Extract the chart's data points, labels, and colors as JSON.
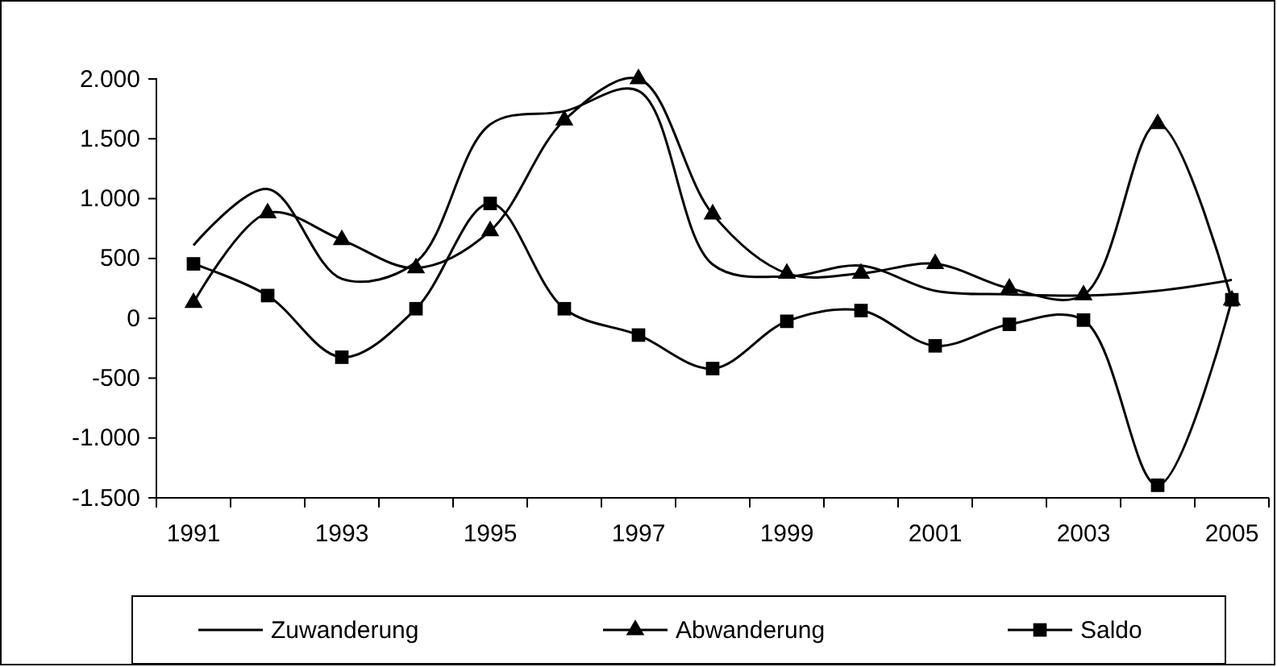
{
  "chart_data": {
    "type": "line",
    "categories": [
      "1991",
      null,
      "1993",
      null,
      "1995",
      null,
      "1997",
      null,
      "1999",
      null,
      "2001",
      null,
      "2003",
      null,
      "2005"
    ],
    "series": [
      {
        "name": "Zuwanderung",
        "color": "#000000",
        "marker": "none",
        "values": [
          610,
          1080,
          330,
          470,
          1620,
          1730,
          1900,
          450,
          350,
          440,
          230,
          200,
          190,
          230,
          320
        ]
      },
      {
        "name": "Abwanderung",
        "color": "#000000",
        "marker": "triangle",
        "values": [
          130,
          880,
          655,
          420,
          730,
          1655,
          2000,
          870,
          375,
          375,
          455,
          250,
          195,
          1625,
          150
        ]
      },
      {
        "name": "Saldo",
        "color": "#000000",
        "marker": "square",
        "values": [
          455,
          190,
          -325,
          80,
          960,
          80,
          -140,
          -420,
          -25,
          65,
          -230,
          -50,
          -15,
          -1395,
          155
        ]
      }
    ],
    "ylim": [
      -1500,
      2000
    ],
    "yticks": [
      {
        "value": -1500,
        "label": "-1.500"
      },
      {
        "value": -1000,
        "label": "-1.000"
      },
      -500,
      0,
      500,
      {
        "value": 1000,
        "label": "1.000"
      },
      {
        "value": 1500,
        "label": "1.500"
      },
      {
        "value": 2000,
        "label": "2.000"
      }
    ],
    "grid": false,
    "legend": "bottom",
    "line_style": "solid"
  }
}
